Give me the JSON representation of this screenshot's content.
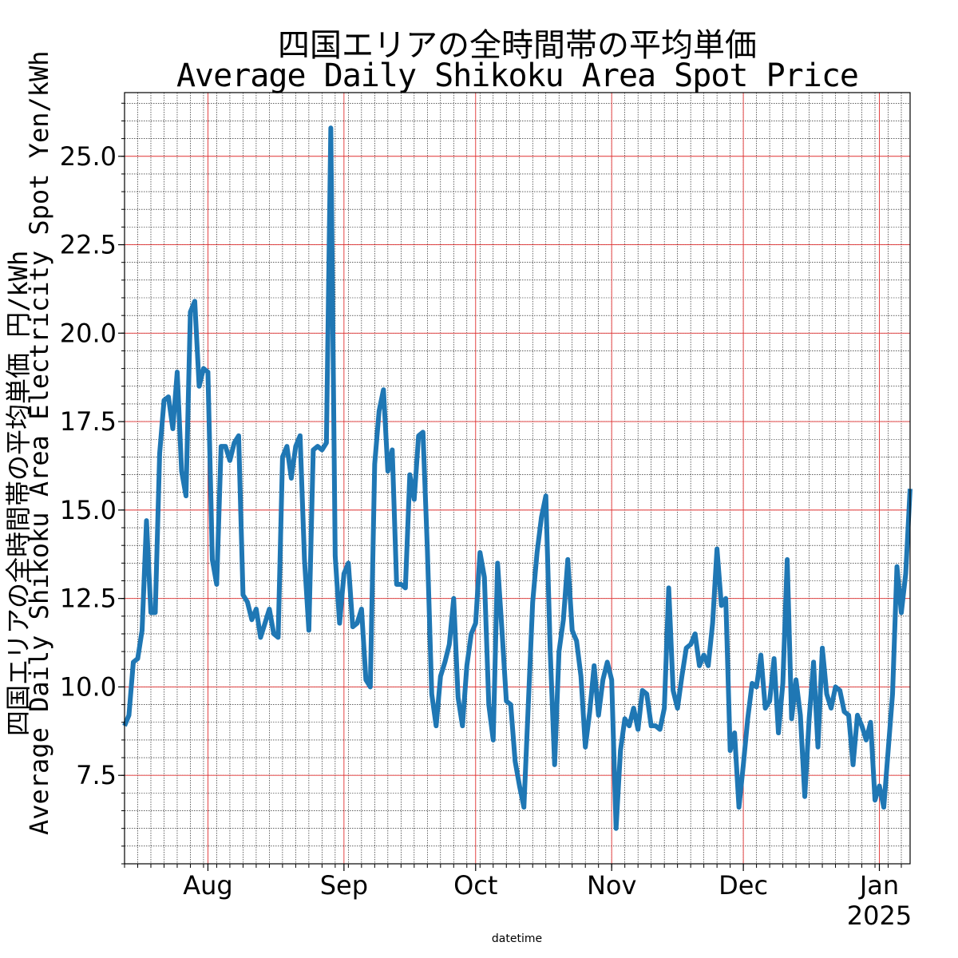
{
  "chart_data": {
    "type": "line",
    "title_ja": "四国エリアの全時間帯の平均単価",
    "title_en": "Average Daily Shikoku Area Spot Price",
    "ylabel_ja": "四国エリアの全時間帯の平均単価 円/kWh",
    "ylabel_en": "Average Daily Shikoku Area Electricity Spot Yen/kWh",
    "xlabel": "datetime",
    "x_start": "2024-07-13",
    "x_ticks": [
      {
        "date": "2024-08-01",
        "label": "Aug"
      },
      {
        "date": "2024-09-01",
        "label": "Sep"
      },
      {
        "date": "2024-10-01",
        "label": "Oct"
      },
      {
        "date": "2024-11-01",
        "label": "Nov"
      },
      {
        "date": "2024-12-01",
        "label": "Dec"
      },
      {
        "date": "2025-01-01",
        "label": "Jan"
      }
    ],
    "x_year_label": "2025",
    "xlim": [
      "2024-07-13",
      "2025-01-08"
    ],
    "ylim": [
      5.0,
      26.8
    ],
    "y_ticks": [
      "7.5",
      "10.0",
      "12.5",
      "15.0",
      "17.5",
      "20.0",
      "22.5",
      "25.0"
    ],
    "grid": true,
    "line_color": "#1f77b4",
    "series": [
      {
        "values": [
          8.9,
          9.2,
          10.7,
          10.8,
          11.6,
          14.7,
          12.1,
          12.1,
          16.6,
          18.1,
          18.2,
          17.3,
          18.9,
          16.1,
          15.4,
          20.6,
          20.9,
          18.5,
          19.0,
          18.9,
          13.6,
          12.9,
          16.8,
          16.8,
          16.4,
          16.9,
          17.1,
          12.6,
          12.4,
          11.9,
          12.2,
          11.4,
          11.8,
          12.2,
          11.5,
          11.4,
          16.5,
          16.8,
          15.9,
          16.8,
          17.1,
          13.6,
          11.6,
          16.7,
          16.8,
          16.7,
          16.9,
          25.8,
          13.7,
          11.8,
          13.2,
          13.5,
          11.7,
          11.8,
          12.2,
          10.2,
          10.0,
          16.3,
          17.8,
          18.4,
          16.1,
          16.7,
          12.9,
          12.9,
          12.8,
          16.0,
          15.3,
          17.1,
          17.2,
          13.9,
          9.8,
          8.9,
          10.3,
          10.7,
          11.2,
          12.5,
          9.7,
          8.9,
          10.6,
          11.5,
          11.8,
          13.8,
          13.1,
          9.5,
          8.5,
          13.5,
          11.6,
          9.6,
          9.5,
          7.9,
          7.2,
          6.6,
          9.5,
          12.4,
          13.8,
          14.8,
          15.4,
          11.0,
          7.8,
          11.0,
          11.9,
          13.6,
          11.6,
          11.3,
          10.3,
          8.3,
          9.3,
          10.6,
          9.2,
          10.2,
          10.7,
          10.2,
          6.0,
          8.2,
          9.1,
          8.9,
          9.4,
          8.8,
          9.9,
          9.8,
          8.9,
          8.9,
          8.8,
          9.4,
          12.8,
          9.9,
          9.4,
          10.3,
          11.1,
          11.2,
          11.5,
          10.6,
          10.9,
          10.6,
          11.8,
          13.9,
          12.3,
          12.5,
          8.2,
          8.7,
          6.6,
          7.8,
          9.1,
          10.1,
          10.0,
          10.9,
          9.4,
          9.6,
          10.8,
          8.7,
          10.1,
          13.6,
          9.1,
          10.2,
          9.2,
          6.9,
          9.1,
          10.7,
          8.3,
          11.1,
          9.8,
          9.4,
          10.0,
          9.9,
          9.3,
          9.2,
          7.8,
          9.2,
          8.9,
          8.5,
          9.0,
          6.8,
          7.2,
          6.6,
          8.2,
          9.8,
          13.4,
          12.1,
          13.2,
          15.6
        ]
      }
    ]
  }
}
